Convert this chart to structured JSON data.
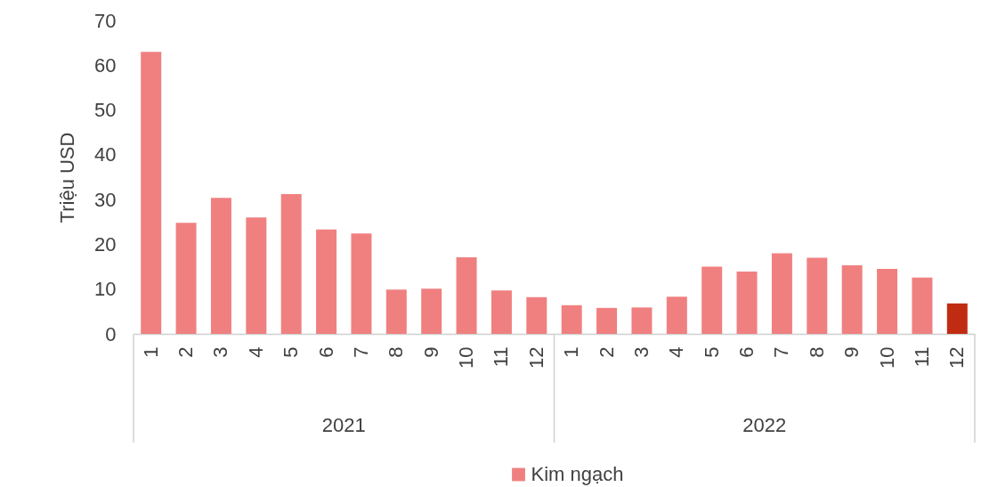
{
  "chart_data": {
    "type": "bar",
    "ylabel": "Triệu USD",
    "categories": [
      "1",
      "2",
      "3",
      "4",
      "5",
      "6",
      "7",
      "8",
      "9",
      "10",
      "11",
      "12",
      "1",
      "2",
      "3",
      "4",
      "5",
      "6",
      "7",
      "8",
      "9",
      "10",
      "11",
      "12"
    ],
    "series": [
      {
        "name": "Kim ngạch",
        "color": "#f08080",
        "values": [
          63.0,
          24.8,
          30.4,
          26.0,
          31.2,
          23.3,
          22.4,
          9.9,
          10.1,
          17.1,
          9.7,
          8.2,
          6.4,
          5.8,
          5.9,
          8.3,
          15.0,
          13.9,
          18.0,
          17.0,
          15.3,
          14.5,
          12.6,
          6.8
        ],
        "colors": [
          "#f08080",
          "#f08080",
          "#f08080",
          "#f08080",
          "#f08080",
          "#f08080",
          "#f08080",
          "#f08080",
          "#f08080",
          "#f08080",
          "#f08080",
          "#f08080",
          "#f08080",
          "#f08080",
          "#f08080",
          "#f08080",
          "#f08080",
          "#f08080",
          "#f08080",
          "#f08080",
          "#f08080",
          "#f08080",
          "#f08080",
          "#c02c12"
        ]
      }
    ],
    "annotations": [
      "2021",
      "2022"
    ],
    "ylim": [
      0,
      70
    ],
    "yticks": [
      0,
      10,
      20,
      30,
      40,
      50,
      60,
      70
    ],
    "grid": false,
    "legend": "bottom"
  }
}
